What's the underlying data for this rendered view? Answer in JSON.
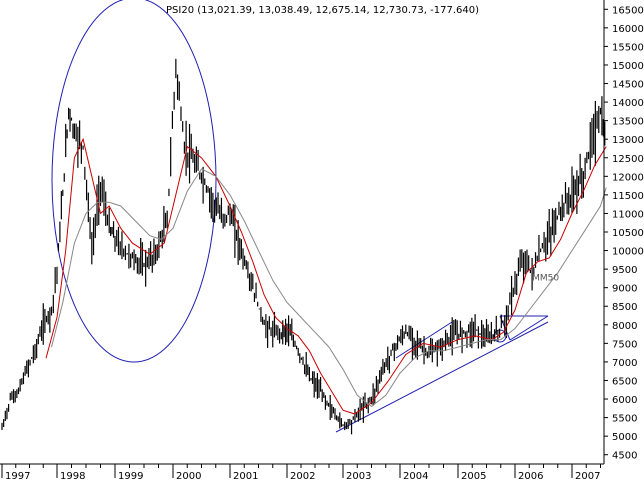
{
  "chart_data": {
    "type": "line",
    "title": "PSI20 (13,021.39, 13,038.49, 12,675.14, 12,730.73, -177.640)",
    "xlabel": "",
    "ylabel": "",
    "x_range": [
      1997.0,
      2007.75
    ],
    "ylim": [
      4250,
      16750
    ],
    "y_ticks": [
      4500,
      5000,
      5500,
      6000,
      6500,
      7000,
      7500,
      8000,
      8500,
      9000,
      9500,
      10000,
      10500,
      11000,
      11500,
      12000,
      12500,
      13000,
      13500,
      14000,
      14500,
      15000,
      15500,
      16000,
      16500
    ],
    "x_ticks": [
      "1997",
      "1998",
      "1999",
      "2000",
      "2001",
      "2002",
      "2003",
      "2004",
      "2005",
      "2006",
      "2007"
    ],
    "grid": false,
    "series": [
      {
        "role": "price",
        "color": "#000000",
        "x": [
          1997.0,
          1997.15,
          1997.3,
          1997.45,
          1997.6,
          1997.75,
          1997.9,
          1998.0,
          1998.1,
          1998.2,
          1998.3,
          1998.45,
          1998.6,
          1998.75,
          1998.9,
          1999.0,
          1999.15,
          1999.3,
          1999.5,
          1999.7,
          1999.9,
          2000.05,
          2000.2,
          2000.35,
          2000.5,
          2000.7,
          2000.85,
          2001.0,
          2001.2,
          2001.4,
          2001.6,
          2001.75,
          2001.9,
          2002.0,
          2002.2,
          2002.4,
          2002.6,
          2002.8,
          2003.0,
          2003.15,
          2003.3,
          2003.5,
          2003.7,
          2003.9,
          2004.1,
          2004.3,
          2004.5,
          2004.7,
          2004.9,
          2005.1,
          2005.3,
          2005.5,
          2005.7,
          2005.85,
          2006.0,
          2006.15,
          2006.3,
          2006.45,
          2006.6,
          2006.8,
          2007.0,
          2007.2,
          2007.35,
          2007.5,
          2007.6
        ],
        "values": [
          5200,
          6000,
          6200,
          6800,
          7300,
          8000,
          8400,
          9500,
          11500,
          13800,
          13200,
          12800,
          10000,
          11800,
          10600,
          10300,
          10000,
          9800,
          9600,
          9900,
          10800,
          15000,
          12800,
          12400,
          12000,
          11300,
          10900,
          11000,
          10000,
          9000,
          8000,
          7800,
          7800,
          7900,
          7300,
          6600,
          6200,
          5700,
          5300,
          5400,
          5700,
          6000,
          6800,
          7400,
          7800,
          7500,
          7200,
          7400,
          7700,
          7800,
          7900,
          7600,
          7800,
          8200,
          9100,
          9800,
          9400,
          10000,
          10400,
          11100,
          11500,
          12000,
          13000,
          13700,
          12700
        ]
      },
      {
        "role": "moving-average-short",
        "color": "#cc0000",
        "x": [
          1997.8,
          1998.0,
          1998.15,
          1998.3,
          1998.45,
          1998.6,
          1998.75,
          1998.9,
          1999.1,
          1999.3,
          1999.6,
          1999.85,
          2000.05,
          2000.25,
          2000.5,
          2000.75,
          2001.0,
          2001.2,
          2001.4,
          2001.6,
          2001.8,
          2002.0,
          2002.2,
          2002.4,
          2002.6,
          2002.8,
          2003.0,
          2003.2,
          2003.5,
          2003.8,
          2004.1,
          2004.4,
          2004.7,
          2005.0,
          2005.3,
          2005.6,
          2005.8,
          2006.0,
          2006.2,
          2006.4,
          2006.6,
          2006.8,
          2007.0,
          2007.2,
          2007.4,
          2007.6
        ],
        "values": [
          7100,
          8200,
          10000,
          12500,
          13000,
          12000,
          11000,
          11200,
          10600,
          10200,
          9900,
          10200,
          11500,
          12800,
          12500,
          12000,
          11200,
          10500,
          9700,
          8800,
          8200,
          7900,
          7700,
          7300,
          6700,
          6200,
          5700,
          5600,
          5900,
          6500,
          7200,
          7500,
          7400,
          7600,
          7700,
          7600,
          7800,
          8400,
          9400,
          9700,
          9800,
          10300,
          11000,
          11600,
          12300,
          12800
        ]
      },
      {
        "role": "moving-average-long",
        "color": "#888888",
        "x": [
          1997.9,
          1998.1,
          1998.3,
          1998.5,
          1998.7,
          1998.9,
          1999.1,
          1999.35,
          1999.6,
          1999.8,
          2000.0,
          2000.25,
          2000.5,
          2000.75,
          2001.0,
          2001.25,
          2001.5,
          2001.75,
          2002.0,
          2002.25,
          2002.5,
          2002.75,
          2003.0,
          2003.25,
          2003.5,
          2003.75,
          2004.0,
          2004.25,
          2004.5,
          2004.75,
          2005.0,
          2005.25,
          2005.5,
          2005.75,
          2006.0,
          2006.25,
          2006.5,
          2006.75,
          2007.0,
          2007.25,
          2007.5,
          2007.6
        ],
        "values": [
          7400,
          8600,
          10200,
          11000,
          11300,
          11300,
          11200,
          10800,
          10400,
          10300,
          10600,
          11600,
          12200,
          12000,
          11500,
          10800,
          10000,
          9200,
          8600,
          8200,
          7800,
          7400,
          6800,
          6100,
          5800,
          6100,
          6700,
          7100,
          7300,
          7300,
          7400,
          7500,
          7600,
          7600,
          7900,
          8400,
          8900,
          9400,
          10000,
          10600,
          11200,
          11700
        ]
      }
    ],
    "annotations": [
      {
        "label": "MM50",
        "x": 2006.3,
        "y": 9200
      }
    ]
  }
}
